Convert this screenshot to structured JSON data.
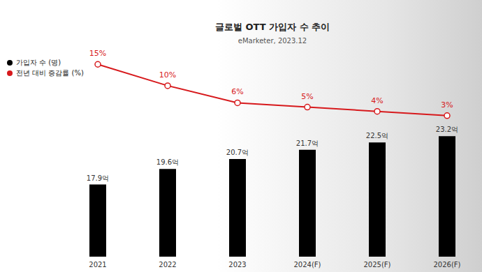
{
  "chart_data": {
    "type": "bar",
    "title": "글로벌 OTT 가입자 수 추이",
    "subtitle": "eMarketer, 2023.12",
    "categories": [
      "2021",
      "2022",
      "2023",
      "2024(F)",
      "2025(F)",
      "2026(F)"
    ],
    "series": [
      {
        "name": "가입자 수 (명)",
        "type": "bar",
        "color": "#000000",
        "values": [
          17.9,
          19.6,
          20.7,
          21.7,
          22.5,
          23.2
        ],
        "value_labels": [
          "17.9억",
          "19.6억",
          "20.7억",
          "21.7억",
          "22.5억",
          "23.2억"
        ],
        "data_labels": true
      },
      {
        "name": "전년 대비 증감률 (%)",
        "type": "line",
        "axis": "y2",
        "color": "#d7191c",
        "marker": "circle",
        "values": [
          15,
          10,
          6,
          5,
          4,
          3
        ],
        "value_labels": [
          "15%",
          "10%",
          "6%",
          "5%",
          "4%",
          "3%"
        ],
        "data_labels": true
      }
    ],
    "ylim": [
      10,
      32
    ],
    "y2lim": [
      -30,
      17
    ],
    "tick_labels": "x",
    "grid": false,
    "legend": "upper left"
  }
}
